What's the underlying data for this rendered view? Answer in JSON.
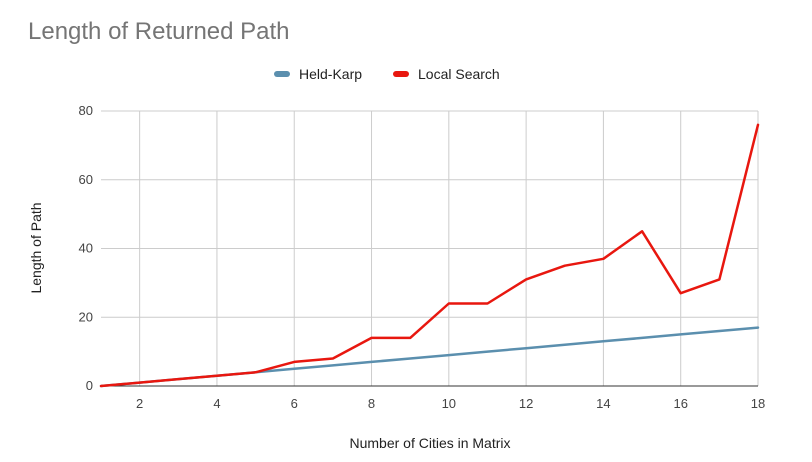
{
  "chart_data": {
    "type": "line",
    "title": "Length of Returned Path",
    "xlabel": "Number of Cities in Matrix",
    "ylabel": "Length of Path",
    "x": [
      1,
      2,
      3,
      4,
      5,
      6,
      7,
      8,
      9,
      10,
      11,
      12,
      13,
      14,
      15,
      16,
      17,
      18
    ],
    "xlim": [
      1,
      18
    ],
    "ylim": [
      0,
      80
    ],
    "xticks": [
      2,
      4,
      6,
      8,
      10,
      12,
      14,
      16,
      18
    ],
    "yticks": [
      0,
      20,
      40,
      60,
      80
    ],
    "grid": true,
    "legend_position": "top",
    "series": [
      {
        "name": "Held-Karp",
        "color": "#5b8fae",
        "values": [
          0,
          1,
          2,
          3,
          4,
          5,
          6,
          7,
          8,
          9,
          10,
          11,
          12,
          13,
          14,
          15,
          16,
          17
        ]
      },
      {
        "name": "Local Search",
        "color": "#e8170f",
        "values": [
          0,
          1,
          2,
          3,
          4,
          7,
          8,
          14,
          14,
          24,
          24,
          31,
          35,
          37,
          45,
          27,
          31,
          76
        ]
      }
    ]
  }
}
